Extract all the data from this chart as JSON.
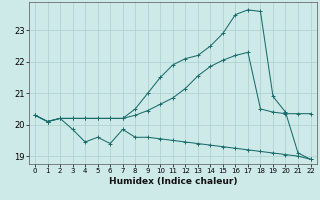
{
  "xlabel": "Humidex (Indice chaleur)",
  "x_values": [
    0,
    1,
    2,
    3,
    4,
    5,
    6,
    7,
    8,
    9,
    10,
    11,
    12,
    13,
    14,
    15,
    16,
    17,
    18,
    19,
    20,
    21,
    22
  ],
  "line_top": [
    20.3,
    20.1,
    20.2,
    20.2,
    20.2,
    20.2,
    20.2,
    20.2,
    20.5,
    21.0,
    21.5,
    21.9,
    22.1,
    22.2,
    22.5,
    22.9,
    23.5,
    23.65,
    23.6,
    20.9,
    20.4,
    19.1,
    18.9
  ],
  "line_mid": [
    20.3,
    20.1,
    20.2,
    20.2,
    20.2,
    20.2,
    20.2,
    20.2,
    20.3,
    20.45,
    20.65,
    20.85,
    21.15,
    21.55,
    21.85,
    22.05,
    22.2,
    22.3,
    20.5,
    20.4,
    20.35,
    20.35,
    20.35
  ],
  "line_bot": [
    20.3,
    20.1,
    20.2,
    19.85,
    19.45,
    19.6,
    19.4,
    19.85,
    19.6,
    19.6,
    19.55,
    19.5,
    19.45,
    19.4,
    19.35,
    19.3,
    19.25,
    19.2,
    19.15,
    19.1,
    19.05,
    19.0,
    18.9
  ],
  "bg_color": "#ceeae8",
  "grid_color": "#aacfcd",
  "line_color": "#1a6b6b",
  "ylim": [
    18.75,
    23.9
  ],
  "yticks": [
    19,
    20,
    21,
    22,
    23
  ],
  "xlim": [
    -0.5,
    22.5
  ]
}
